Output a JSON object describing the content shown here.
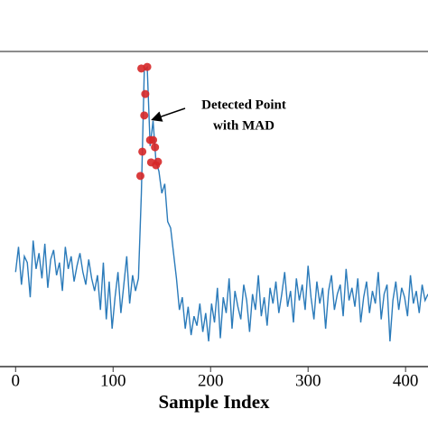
{
  "chart_data": {
    "type": "line",
    "x_label": "Sample Index",
    "annotation": [
      "Detected Point",
      "with MAD"
    ],
    "xlim": [
      -16,
      423
    ],
    "ylim": [
      0,
      100
    ],
    "xticks": [
      0,
      100,
      200,
      300,
      400
    ],
    "color": "#2b7bba",
    "x": [
      0,
      3,
      6,
      9,
      12,
      15,
      18,
      21,
      24,
      27,
      30,
      33,
      36,
      39,
      42,
      45,
      48,
      51,
      54,
      57,
      60,
      63,
      66,
      69,
      72,
      75,
      78,
      81,
      84,
      87,
      90,
      93,
      96,
      99,
      102,
      105,
      108,
      111,
      114,
      117,
      120,
      123,
      126,
      129,
      132,
      135,
      138,
      141,
      144,
      147,
      150,
      153,
      156,
      159,
      162,
      165,
      168,
      171,
      174,
      177,
      180,
      183,
      186,
      189,
      192,
      195,
      198,
      201,
      204,
      207,
      210,
      213,
      216,
      219,
      222,
      225,
      228,
      231,
      234,
      237,
      240,
      243,
      246,
      249,
      252,
      255,
      258,
      261,
      264,
      267,
      270,
      273,
      276,
      279,
      282,
      285,
      288,
      291,
      294,
      297,
      300,
      303,
      306,
      309,
      312,
      315,
      318,
      321,
      324,
      327,
      330,
      333,
      336,
      339,
      342,
      345,
      348,
      351,
      354,
      357,
      360,
      363,
      366,
      369,
      372,
      375,
      378,
      381,
      384,
      387,
      390,
      393,
      396,
      399,
      402,
      405,
      408,
      411,
      414,
      417,
      420,
      423
    ],
    "values": [
      30,
      38,
      26,
      35,
      33,
      22,
      40,
      31,
      36,
      28,
      39,
      25,
      34,
      37,
      29,
      33,
      24,
      38,
      31,
      35,
      27,
      32,
      36,
      30,
      26,
      34,
      28,
      24,
      29,
      18,
      33,
      15,
      27,
      12,
      22,
      30,
      17,
      26,
      35,
      20,
      29,
      24,
      28,
      55,
      94,
      95,
      70,
      78,
      65,
      62,
      55,
      58,
      46,
      44,
      36,
      28,
      18,
      22,
      12,
      19,
      10,
      16,
      13,
      20,
      11,
      17,
      8,
      20,
      14,
      25,
      9,
      22,
      17,
      28,
      12,
      24,
      19,
      15,
      26,
      21,
      11,
      23,
      18,
      29,
      16,
      22,
      13,
      25,
      20,
      27,
      17,
      23,
      30,
      19,
      24,
      14,
      28,
      21,
      26,
      18,
      32,
      22,
      15,
      27,
      20,
      25,
      12,
      24,
      29,
      18,
      23,
      26,
      16,
      31,
      21,
      25,
      19,
      28,
      14,
      22,
      27,
      17,
      24,
      20,
      30,
      15,
      23,
      26,
      8,
      21,
      27,
      18,
      25,
      22,
      16,
      29,
      20,
      24,
      17,
      26,
      21,
      23
    ],
    "markers": {
      "color": "#d62728",
      "x": [
        129,
        135,
        133,
        132,
        130,
        128,
        138,
        141,
        143,
        139,
        146,
        144
      ],
      "values": [
        94.6,
        95.1,
        86.5,
        79.7,
        68.2,
        60.5,
        71.9,
        71.9,
        69.6,
        64.8,
        65.0,
        63.9
      ]
    }
  }
}
